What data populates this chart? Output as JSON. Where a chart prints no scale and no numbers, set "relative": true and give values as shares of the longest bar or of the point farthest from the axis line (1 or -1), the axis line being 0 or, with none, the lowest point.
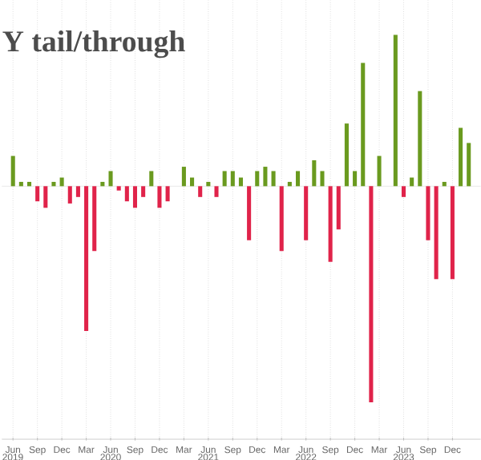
{
  "chart_data": {
    "type": "bar",
    "title": "Y tail/through",
    "relative": true,
    "grid": "x",
    "x": [
      "2019-06",
      "2019-07",
      "2019-08",
      "2019-09",
      "2019-10",
      "2019-11",
      "2019-12",
      "2020-01",
      "2020-02",
      "2020-03",
      "2020-04",
      "2020-05",
      "2020-06",
      "2020-07",
      "2020-08",
      "2020-09",
      "2020-10",
      "2020-11",
      "2020-12",
      "2021-01",
      "2021-02",
      "2021-03",
      "2021-04",
      "2021-05",
      "2021-06",
      "2021-07",
      "2021-08",
      "2021-09",
      "2021-10",
      "2021-11",
      "2021-12",
      "2022-01",
      "2022-02",
      "2022-03",
      "2022-04",
      "2022-05",
      "2022-06",
      "2022-07",
      "2022-08",
      "2022-09",
      "2022-10",
      "2022-11",
      "2022-12",
      "2023-01",
      "2023-02",
      "2023-03",
      "2023-04",
      "2023-05",
      "2023-06",
      "2023-07",
      "2023-08",
      "2023-09",
      "2023-10",
      "2023-11",
      "2023-12",
      "2024-01",
      "2024-02"
    ],
    "values": [
      0.14,
      0.02,
      0.02,
      -0.07,
      -0.1,
      0.02,
      0.04,
      -0.08,
      -0.05,
      -0.67,
      -0.3,
      0.02,
      0.07,
      -0.02,
      -0.07,
      -0.1,
      -0.05,
      0.07,
      -0.1,
      -0.07,
      null,
      0.09,
      0.04,
      -0.05,
      0.02,
      -0.05,
      0.07,
      0.07,
      0.04,
      -0.25,
      0.07,
      0.09,
      0.07,
      -0.3,
      0.02,
      0.07,
      -0.25,
      0.12,
      0.07,
      -0.35,
      -0.2,
      0.29,
      0.07,
      0.57,
      -1,
      0.14,
      null,
      0.7,
      -0.05,
      0.04,
      0.44,
      -0.25,
      -0.43,
      0.02,
      -0.43,
      0.27,
      0.2
    ],
    "colors": [
      "#6a9a1f",
      "#6a9a1f",
      "#6a9a1f",
      "#e0234a",
      "#e0234a",
      "#6a9a1f",
      "#6a9a1f",
      "#e0234a",
      "#e0234a",
      "#e0234a",
      "#e0234a",
      "#6a9a1f",
      "#6a9a1f",
      "#e0234a",
      "#e0234a",
      "#e0234a",
      "#e0234a",
      "#6a9a1f",
      "#e0234a",
      "#e0234a",
      "#6a9a1f",
      "#6a9a1f",
      "#6a9a1f",
      "#e0234a",
      "#6a9a1f",
      "#e0234a",
      "#6a9a1f",
      "#6a9a1f",
      "#6a9a1f",
      "#e0234a",
      "#6a9a1f",
      "#6a9a1f",
      "#6a9a1f",
      "#e0234a",
      "#6a9a1f",
      "#6a9a1f",
      "#e0234a",
      "#6a9a1f",
      "#6a9a1f",
      "#e0234a",
      "#e0234a",
      "#6a9a1f",
      "#6a9a1f",
      "#6a9a1f",
      "#e0234a",
      "#6a9a1f",
      "#6a9a1f",
      "#6a9a1f",
      "#e0234a",
      "#6a9a1f",
      "#6a9a1f",
      "#e0234a",
      "#e0234a",
      "#6a9a1f",
      "#e0234a",
      "#6a9a1f",
      "#6a9a1f"
    ],
    "xlim": [
      "2019-04-20",
      "2024-03-15"
    ],
    "xticks": [
      {
        "value": "2019-06",
        "label": "Jun"
      },
      {
        "value": "2019-09",
        "label": "Sep"
      },
      {
        "value": "2019-12",
        "label": "Dec"
      },
      {
        "value": "2020-03",
        "label": "Mar"
      },
      {
        "value": "2020-06",
        "label": "Jun"
      },
      {
        "value": "2020-09",
        "label": "Sep"
      },
      {
        "value": "2020-12",
        "label": "Dec"
      },
      {
        "value": "2021-03",
        "label": "Mar"
      },
      {
        "value": "2021-06",
        "label": "Jun"
      },
      {
        "value": "2021-09",
        "label": "Sep"
      },
      {
        "value": "2021-12",
        "label": "Dec"
      },
      {
        "value": "2022-03",
        "label": "Mar"
      },
      {
        "value": "2022-06",
        "label": "Jun"
      },
      {
        "value": "2022-09",
        "label": "Sep"
      },
      {
        "value": "2022-12",
        "label": "Dec"
      },
      {
        "value": "2023-03",
        "label": "Mar"
      },
      {
        "value": "2023-06",
        "label": "Jun"
      },
      {
        "value": "2023-09",
        "label": "Sep"
      },
      {
        "value": "2023-12",
        "label": "Dec"
      }
    ],
    "annotations": [
      "2019",
      "2020",
      "2021",
      "2022",
      "2023"
    ]
  }
}
